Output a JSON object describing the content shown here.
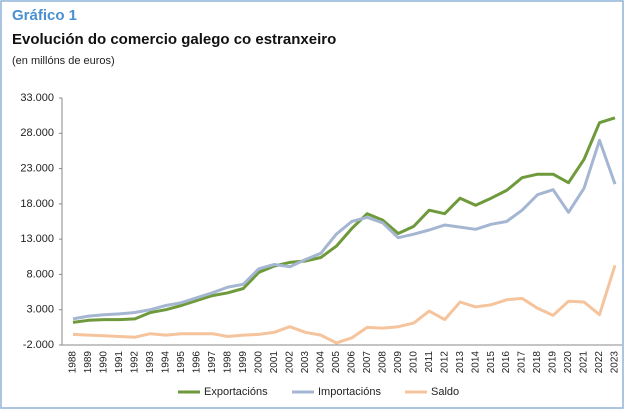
{
  "chart_data": {
    "type": "line",
    "figure_label": "Gráfico 1",
    "title": "Evolución do comercio galego co estranxeiro",
    "subtitle": "(en millóns de euros)",
    "categories": [
      "1988",
      "1989",
      "1990",
      "1991",
      "1992",
      "1993",
      "1994",
      "1995",
      "1996",
      "1997",
      "1998",
      "1999",
      "2000",
      "2001",
      "2002",
      "2003",
      "2004",
      "2005",
      "2006",
      "2007",
      "2008",
      "2009",
      "2010",
      "2011",
      "2012",
      "2013",
      "2014",
      "2015",
      "2016",
      "2017",
      "2018",
      "2019",
      "2020",
      "2021",
      "2022",
      "2023"
    ],
    "series": [
      {
        "name": "Exportacións",
        "color": "#6e9a3c",
        "values": [
          1200,
          1500,
          1600,
          1600,
          1700,
          2600,
          3000,
          3600,
          4300,
          5000,
          5400,
          6000,
          8300,
          9200,
          9700,
          9900,
          10400,
          12000,
          14500,
          16600,
          15700,
          13800,
          14800,
          17100,
          16600,
          18800,
          17800,
          18800,
          19900,
          21700,
          22200,
          22200,
          21000,
          24300,
          29500,
          30200
        ]
      },
      {
        "name": "Importacións",
        "color": "#a5b6d2",
        "values": [
          1700,
          2100,
          2300,
          2400,
          2600,
          3000,
          3600,
          4000,
          4700,
          5400,
          6200,
          6600,
          8800,
          9400,
          9100,
          10100,
          11000,
          13700,
          15500,
          16100,
          15300,
          13200,
          13700,
          14300,
          15000,
          14700,
          14400,
          15100,
          15500,
          17100,
          19300,
          20000,
          16800,
          20200,
          27000,
          20800
        ]
      },
      {
        "name": "Saldo",
        "color": "#f6c49c",
        "values": [
          -500,
          -600,
          -700,
          -800,
          -900,
          -400,
          -600,
          -400,
          -400,
          -400,
          -800,
          -600,
          -500,
          -200,
          600,
          -200,
          -600,
          -1700,
          -1000,
          500,
          400,
          600,
          1100,
          2800,
          1600,
          4100,
          3400,
          3700,
          4400,
          4600,
          3200,
          2200,
          4200,
          4100,
          2300,
          9300
        ]
      }
    ],
    "ylim": [
      -2000,
      33000
    ],
    "yticks": [
      {
        "value": -2000,
        "label": "-2.000"
      },
      {
        "value": 3000,
        "label": "3.000"
      },
      {
        "value": 8000,
        "label": "8.000"
      },
      {
        "value": 13000,
        "label": "13.000"
      },
      {
        "value": 18000,
        "label": "18.000"
      },
      {
        "value": 23000,
        "label": "23.000"
      },
      {
        "value": 28000,
        "label": "28.000"
      },
      {
        "value": 33000,
        "label": "33.000"
      }
    ],
    "grid": false,
    "legend": "bottom"
  }
}
